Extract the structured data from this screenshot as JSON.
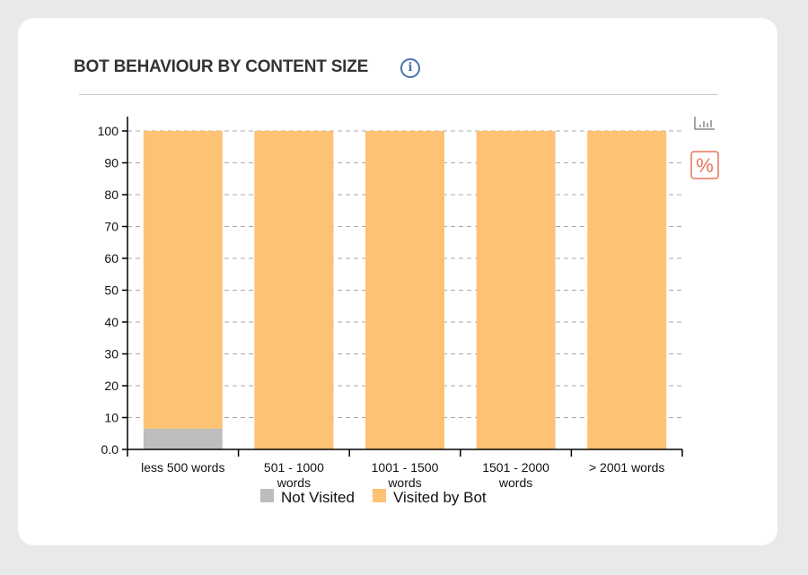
{
  "header": {
    "title": "BOT BEHAVIOUR BY CONTENT SIZE",
    "info_icon": "info-icon"
  },
  "toolbar": {
    "bar_icon": "bar-chart-icon",
    "percent_icon": "percent-icon",
    "percent_color": "#e8735a"
  },
  "chart_data": {
    "type": "bar",
    "stacked": true,
    "title": "BOT BEHAVIOUR BY CONTENT SIZE",
    "categories": [
      "less 500 words",
      "501 - 1000 words",
      "1001 - 1500 words",
      "1501 - 2000 words",
      "> 2001 words"
    ],
    "category_lines": [
      [
        "less 500 words"
      ],
      [
        "501 - 1000",
        "words"
      ],
      [
        "1001 - 1500",
        "words"
      ],
      [
        "1501 - 2000",
        "words"
      ],
      [
        "> 2001 words"
      ]
    ],
    "series": [
      {
        "name": "Not Visited",
        "color": "#bdbdbd",
        "values": [
          6.5,
          0,
          0,
          0,
          0
        ]
      },
      {
        "name": "Visited by Bot",
        "color": "#fdc274",
        "values": [
          93.5,
          100,
          100,
          100,
          100
        ]
      }
    ],
    "ylim": [
      0,
      100
    ],
    "yticks": [
      0,
      10,
      20,
      30,
      40,
      50,
      60,
      70,
      80,
      90,
      100
    ],
    "ytick_labels": [
      "0.0",
      "10",
      "20",
      "30",
      "40",
      "50",
      "60",
      "70",
      "80",
      "90",
      "100"
    ],
    "grid": true,
    "legend": "bottom",
    "xlabel": "",
    "ylabel": ""
  }
}
